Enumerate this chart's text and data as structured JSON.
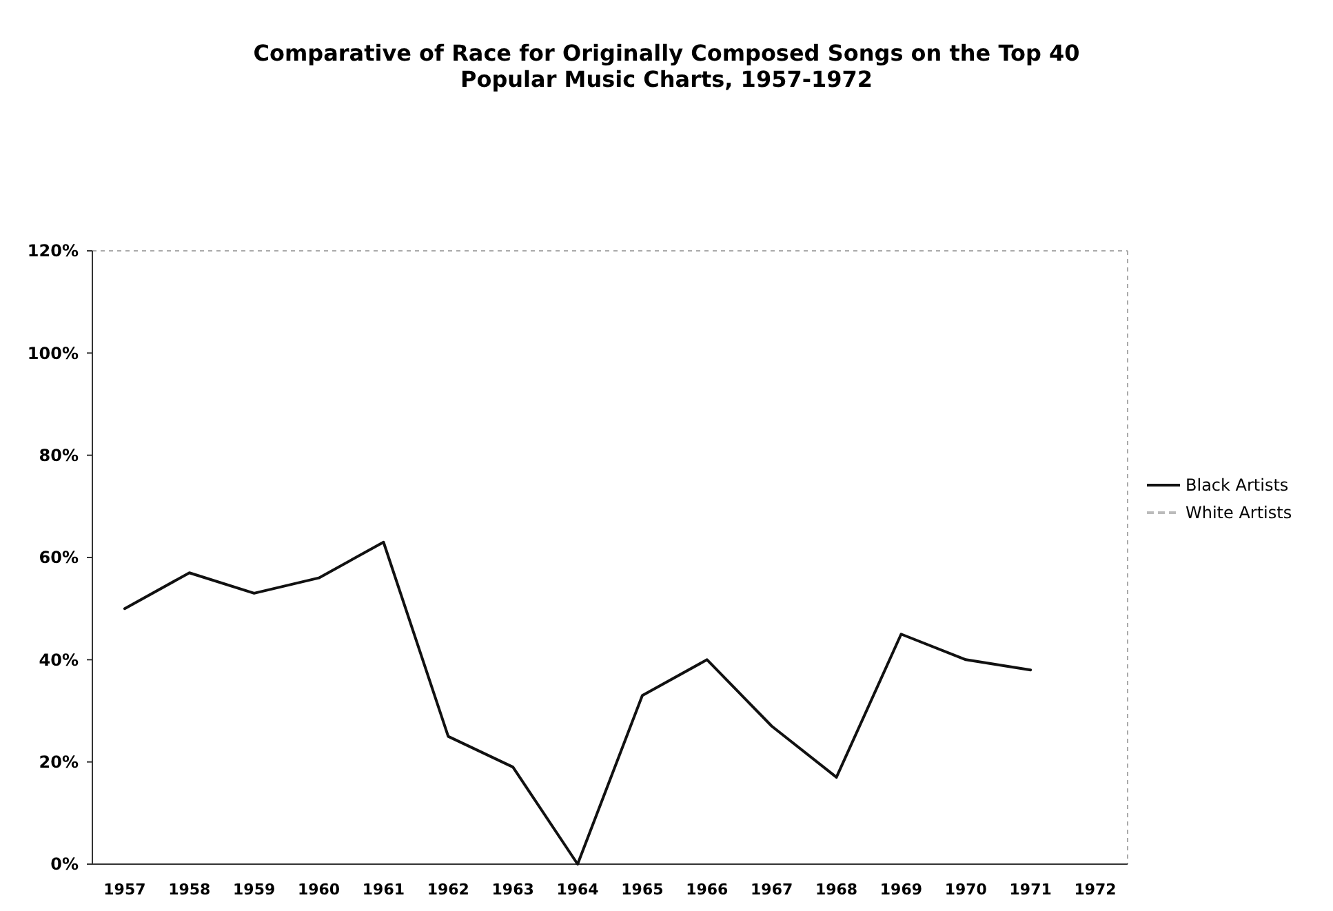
{
  "chart_data": {
    "type": "line",
    "title": "Comparative of Race for Originally Composed Songs on the Top 40\nPopular Music Charts, 1957-1972",
    "categories": [
      "1957",
      "1958",
      "1959",
      "1960",
      "1961",
      "1962",
      "1963",
      "1964",
      "1965",
      "1966",
      "1967",
      "1968",
      "1969",
      "1970",
      "1971",
      "1972"
    ],
    "series": [
      {
        "name": "Black Artists",
        "color": "#111111",
        "line_style": "solid",
        "values": [
          50,
          57,
          53,
          56,
          63,
          25,
          19,
          0,
          33,
          40,
          27,
          17,
          45,
          40,
          38,
          null
        ]
      },
      {
        "name": "White Artists",
        "color": "#bbbbbb",
        "line_style": "dashed",
        "values": [
          null,
          null,
          null,
          null,
          null,
          null,
          null,
          null,
          null,
          null,
          null,
          null,
          null,
          null,
          null,
          null
        ]
      }
    ],
    "ylim": [
      0,
      120
    ],
    "yticks": [
      {
        "value": 0,
        "label": "0%"
      },
      {
        "value": 20,
        "label": "20%"
      },
      {
        "value": 40,
        "label": "40%"
      },
      {
        "value": 60,
        "label": "60%"
      },
      {
        "value": 80,
        "label": "80%"
      },
      {
        "value": 100,
        "label": "100%"
      },
      {
        "value": 120,
        "label": "120%"
      }
    ],
    "grid": false,
    "legend": "right",
    "marker": "none"
  }
}
